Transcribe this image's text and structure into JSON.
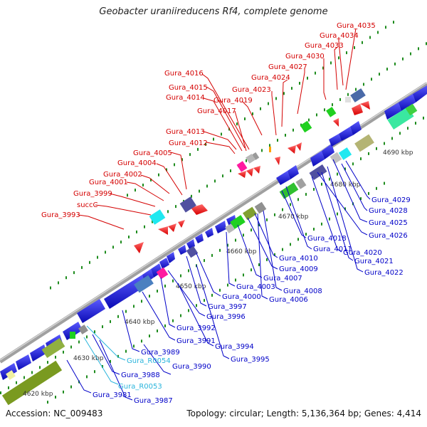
{
  "title": "Geobacter uraniireducens Rf4, complete genome",
  "footer": {
    "accession": "Accession: NC_009483",
    "summary": "Topology: circular; Length: 5,136,364 bp; Genes: 4,414"
  },
  "colors": {
    "backbone": "#a0a0a0",
    "forward_label": "#d40000",
    "reverse_label": "#0000c8",
    "rna_label": "#28b4dc",
    "forward_gene": "#ff1010",
    "reverse_gene": "#1414e6",
    "tick": "#1e8c1e"
  },
  "scale_labels": [
    "4620 kbp",
    "4630 kbp",
    "4640 kbp",
    "4650 kbp",
    "4660 kbp",
    "4670 kbp",
    "4680 kbp",
    "4690 kbp"
  ],
  "labels_top": [
    "Gura_4035",
    "Gura_4034",
    "Gura_4033",
    "Gura_4030",
    "Gura_4027",
    "Gura_4024",
    "Gura_4023",
    "Gura_4019",
    "Gura_4016",
    "Gura_4015",
    "Gura_4014",
    "Gura_4017",
    "Gura_4013",
    "Gura_4012",
    "Gura_4005",
    "Gura_4004",
    "Gura_4002",
    "Gura_4001",
    "Gura_3999",
    "succC",
    "Gura_3993"
  ],
  "labels_bottom": [
    "Gura_4029",
    "Gura_4028",
    "Gura_4025",
    "Gura_4026",
    "Gura_4018",
    "Gura_4011",
    "Gura_4020",
    "Gura_4021",
    "Gura_4022",
    "Gura_4010",
    "Gura_4009",
    "Gura_4007",
    "Gura_4008",
    "Gura_4003",
    "Gura_4006",
    "Gura_4000",
    "Gura_3997",
    "Gura_3996",
    "Gura_3992",
    "Gura_3991",
    "Gura_3994",
    "Gura_3995",
    "Gura_3989",
    "Gura_R0054",
    "Gura_3990",
    "Gura_3988",
    "Gura_R0053",
    "Gura_3981",
    "Gura_3987"
  ]
}
